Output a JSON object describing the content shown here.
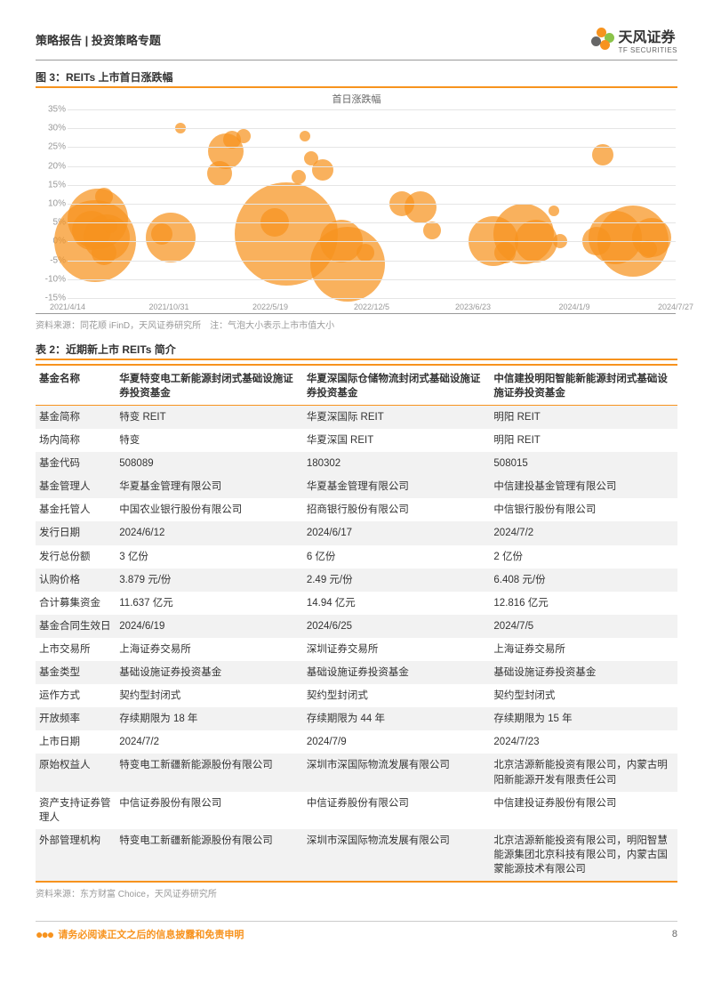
{
  "header": {
    "category": "策略报告 | 投资策略专题",
    "brand_cn": "天风证券",
    "brand_en": "TF SECURITIES"
  },
  "figure": {
    "label": "图 3：REITs 上市首日涨跌幅",
    "chart_title": "首日涨跌幅",
    "source": "资料来源：同花顺 iFinD，天风证券研究所　注：气泡大小表示上市市值大小",
    "type": "bubble",
    "bubble_color": "#f7931e",
    "bubble_opacity": 0.72,
    "grid_color": "#e5e5e5",
    "axis_text_color": "#999999",
    "background_color": "#ffffff",
    "ylim": [
      -15,
      35
    ],
    "ytick_step": 5,
    "yticks": [
      "-15%",
      "-10%",
      "-5%",
      "0%",
      "5%",
      "10%",
      "15%",
      "20%",
      "25%",
      "30%",
      "35%"
    ],
    "xticks": [
      "2021/4/14",
      "2021/10/31",
      "2022/5/19",
      "2022/12/5",
      "2023/6/23",
      "2024/1/9",
      "2024/7/27"
    ],
    "points": [
      {
        "x": 0.04,
        "y": 3,
        "r": 22
      },
      {
        "x": 0.05,
        "y": 6,
        "r": 34
      },
      {
        "x": 0.045,
        "y": 0,
        "r": 46
      },
      {
        "x": 0.06,
        "y": -3,
        "r": 14
      },
      {
        "x": 0.06,
        "y": 12,
        "r": 10
      },
      {
        "x": 0.065,
        "y": 1,
        "r": 26
      },
      {
        "x": 0.07,
        "y": 4,
        "r": 8
      },
      {
        "x": 0.155,
        "y": 2,
        "r": 12
      },
      {
        "x": 0.17,
        "y": 1,
        "r": 28
      },
      {
        "x": 0.185,
        "y": 30,
        "r": 6
      },
      {
        "x": 0.25,
        "y": 18,
        "r": 14
      },
      {
        "x": 0.26,
        "y": 24,
        "r": 20
      },
      {
        "x": 0.27,
        "y": 27,
        "r": 10
      },
      {
        "x": 0.29,
        "y": 28,
        "r": 8
      },
      {
        "x": 0.34,
        "y": 5,
        "r": 16
      },
      {
        "x": 0.36,
        "y": 2,
        "r": 58
      },
      {
        "x": 0.38,
        "y": 17,
        "r": 8
      },
      {
        "x": 0.39,
        "y": 28,
        "r": 6
      },
      {
        "x": 0.4,
        "y": 22,
        "r": 8
      },
      {
        "x": 0.42,
        "y": 19,
        "r": 12
      },
      {
        "x": 0.45,
        "y": 0,
        "r": 24
      },
      {
        "x": 0.46,
        "y": -6,
        "r": 42
      },
      {
        "x": 0.49,
        "y": -3,
        "r": 10
      },
      {
        "x": 0.55,
        "y": 10,
        "r": 14
      },
      {
        "x": 0.58,
        "y": 9,
        "r": 18
      },
      {
        "x": 0.6,
        "y": 3,
        "r": 10
      },
      {
        "x": 0.7,
        "y": 0,
        "r": 28
      },
      {
        "x": 0.72,
        "y": -3,
        "r": 12
      },
      {
        "x": 0.75,
        "y": 2,
        "r": 34
      },
      {
        "x": 0.77,
        "y": 0,
        "r": 24
      },
      {
        "x": 0.8,
        "y": 8,
        "r": 6
      },
      {
        "x": 0.81,
        "y": 0,
        "r": 8
      },
      {
        "x": 0.87,
        "y": 0,
        "r": 16
      },
      {
        "x": 0.88,
        "y": 23,
        "r": 12
      },
      {
        "x": 0.9,
        "y": 1,
        "r": 30
      },
      {
        "x": 0.93,
        "y": 0,
        "r": 40
      },
      {
        "x": 0.96,
        "y": 1,
        "r": 22
      },
      {
        "x": 0.955,
        "y": -2,
        "r": 10
      }
    ]
  },
  "table": {
    "label": "表 2：近期新上市 REITs 简介",
    "source": "资料来源：东方财富 Choice，天风证券研究所",
    "header_row": [
      "基金名称",
      "华夏特变电工新能源封闭式基础设施证券投资基金",
      "华夏深国际仓储物流封闭式基础设施证券投资基金",
      "中信建投明阳智能新能源封闭式基础设施证券投资基金"
    ],
    "rows": [
      {
        "shade": true,
        "c": [
          "基金简称",
          "特变 REIT",
          "华夏深国际 REIT",
          "明阳 REIT"
        ]
      },
      {
        "shade": false,
        "c": [
          "场内简称",
          "特变",
          "华夏深国 REIT",
          "明阳 REIT"
        ]
      },
      {
        "shade": true,
        "c": [
          "基金代码",
          "508089",
          "180302",
          "508015"
        ]
      },
      {
        "shade": true,
        "c": [
          "基金管理人",
          "华夏基金管理有限公司",
          "华夏基金管理有限公司",
          "中信建投基金管理有限公司"
        ]
      },
      {
        "shade": false,
        "c": [
          "基金托管人",
          "中国农业银行股份有限公司",
          "招商银行股份有限公司",
          "中信银行股份有限公司"
        ]
      },
      {
        "shade": true,
        "c": [
          "发行日期",
          "2024/6/12",
          "2024/6/17",
          "2024/7/2"
        ]
      },
      {
        "shade": false,
        "c": [
          "发行总份额",
          "  3 亿份",
          "  6 亿份",
          "  2 亿份"
        ]
      },
      {
        "shade": true,
        "c": [
          "认购价格",
          "3.879 元/份",
          "2.49 元/份",
          "6.408 元/份"
        ]
      },
      {
        "shade": false,
        "c": [
          "合计募集资金",
          "11.637 亿元",
          "14.94 亿元",
          "12.816 亿元"
        ]
      },
      {
        "shade": true,
        "c": [
          "基金合同生效日",
          "2024/6/19",
          "2024/6/25",
          "2024/7/5"
        ]
      },
      {
        "shade": false,
        "c": [
          "上市交易所",
          "上海证券交易所",
          "深圳证券交易所",
          "上海证券交易所"
        ]
      },
      {
        "shade": true,
        "c": [
          "基金类型",
          "基础设施证券投资基金",
          "基础设施证券投资基金",
          "基础设施证券投资基金"
        ]
      },
      {
        "shade": false,
        "c": [
          "运作方式",
          "契约型封闭式",
          "契约型封闭式",
          "契约型封闭式"
        ]
      },
      {
        "shade": true,
        "c": [
          "开放频率",
          "存续期限为 18 年",
          "存续期限为 44 年",
          "存续期限为 15 年"
        ]
      },
      {
        "shade": false,
        "c": [
          "上市日期",
          "2024/7/2",
          "2024/7/9",
          "2024/7/23"
        ]
      },
      {
        "shade": true,
        "c": [
          "原始权益人",
          "特变电工新疆新能源股份有限公司",
          "深圳市深国际物流发展有限公司",
          "北京洁源新能投资有限公司，内蒙古明阳新能源开发有限责任公司"
        ]
      },
      {
        "shade": false,
        "c": [
          "资产支持证券管理人",
          "中信证券股份有限公司",
          "中信证券股份有限公司",
          "中信建投证券股份有限公司"
        ]
      },
      {
        "shade": true,
        "c": [
          "外部管理机构",
          "特变电工新疆新能源股份有限公司",
          "深圳市深国际物流发展有限公司",
          "北京洁源新能投资有限公司，明阳智慧能源集团北京科技有限公司，内蒙古国蒙能源技术有限公司"
        ]
      }
    ]
  },
  "footer": {
    "disclaimer": "请务必阅读正文之后的信息披露和免责申明",
    "page": "8"
  }
}
